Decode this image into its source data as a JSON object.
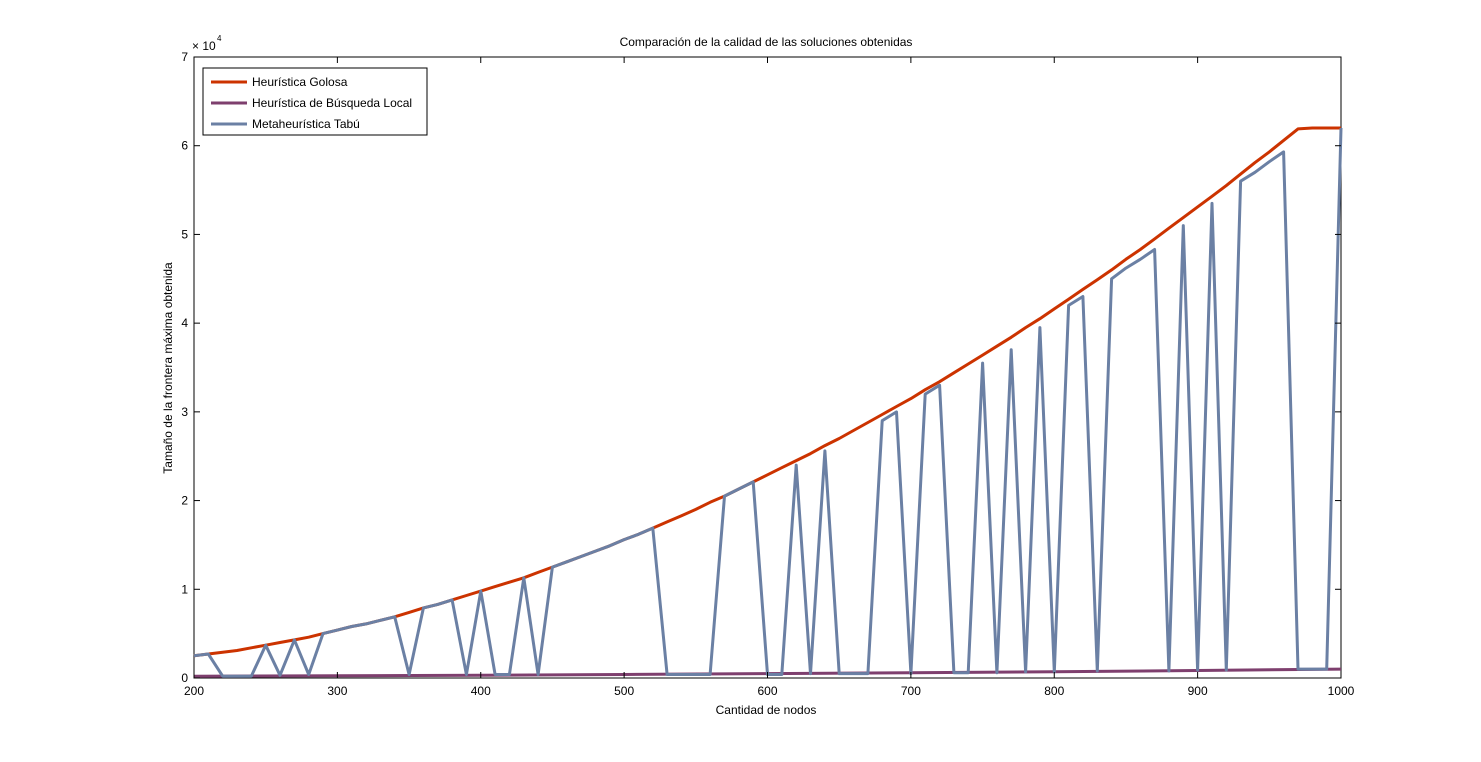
{
  "chart_data": {
    "type": "line",
    "title": "Comparación de la calidad de las soluciones obtenidas",
    "xlabel": "Cantidad de nodos",
    "ylabel": "Tamaño de la frontera máxima obtenida",
    "xlim": [
      200,
      1000
    ],
    "ylim": [
      0,
      70000
    ],
    "x_ticks": [
      "200",
      "300",
      "400",
      "500",
      "600",
      "700",
      "800",
      "900",
      "1000"
    ],
    "y_ticks": [
      "0",
      "1",
      "2",
      "3",
      "4",
      "5",
      "6",
      "7"
    ],
    "y_exponent": {
      "base": "× 10",
      "power": "4"
    },
    "grid": false,
    "legend_position": "top-left",
    "series": [
      {
        "name": "Heurística Golosa",
        "color": "#cc3300",
        "x": [
          200,
          210,
          220,
          230,
          240,
          250,
          260,
          270,
          280,
          290,
          300,
          310,
          320,
          330,
          340,
          350,
          360,
          370,
          380,
          390,
          400,
          410,
          420,
          430,
          440,
          450,
          460,
          470,
          480,
          490,
          500,
          510,
          520,
          530,
          540,
          550,
          560,
          570,
          580,
          590,
          600,
          610,
          620,
          630,
          640,
          650,
          660,
          670,
          680,
          690,
          700,
          710,
          720,
          730,
          740,
          750,
          760,
          770,
          780,
          790,
          800,
          810,
          820,
          830,
          840,
          850,
          860,
          870,
          880,
          890,
          900,
          910,
          920,
          930,
          940,
          950,
          960,
          970,
          980,
          990,
          1000
        ],
        "values": [
          2500,
          2700,
          2900,
          3100,
          3400,
          3700,
          4000,
          4300,
          4600,
          5000,
          5400,
          5800,
          6100,
          6500,
          6900,
          7400,
          7900,
          8300,
          8800,
          9300,
          9800,
          10300,
          10800,
          11300,
          11900,
          12500,
          13100,
          13700,
          14300,
          14900,
          15600,
          16200,
          16900,
          17600,
          18300,
          19000,
          19800,
          20500,
          21300,
          22100,
          22900,
          23700,
          24500,
          25300,
          26200,
          27000,
          27900,
          28800,
          29700,
          30600,
          31500,
          32500,
          33400,
          34400,
          35400,
          36400,
          37400,
          38400,
          39500,
          40500,
          41600,
          42700,
          43800,
          44900,
          46000,
          47200,
          48300,
          49500,
          50700,
          51900,
          53100,
          54300,
          55500,
          56800,
          58100,
          59300,
          60600,
          61900,
          62000,
          62000,
          62000
        ]
      },
      {
        "name": "Heurística de Búsqueda Local",
        "color": "#7e3f6e",
        "x": [
          200,
          300,
          400,
          500,
          600,
          700,
          800,
          900,
          1000
        ],
        "values": [
          200,
          250,
          300,
          400,
          500,
          600,
          700,
          850,
          1000
        ]
      },
      {
        "name": "Metaheurística Tabú",
        "color": "#6b80a4",
        "x": [
          200,
          210,
          220,
          230,
          240,
          250,
          260,
          270,
          280,
          290,
          300,
          310,
          320,
          330,
          340,
          350,
          360,
          370,
          380,
          390,
          400,
          410,
          420,
          430,
          440,
          450,
          460,
          470,
          480,
          490,
          500,
          510,
          520,
          530,
          540,
          550,
          560,
          570,
          580,
          590,
          600,
          610,
          620,
          630,
          640,
          650,
          660,
          670,
          680,
          690,
          700,
          710,
          720,
          730,
          740,
          750,
          760,
          770,
          780,
          790,
          800,
          810,
          820,
          830,
          840,
          850,
          860,
          870,
          880,
          890,
          900,
          910,
          920,
          930,
          940,
          950,
          960,
          970,
          980,
          990,
          1000
        ],
        "values": [
          2500,
          2700,
          200,
          200,
          200,
          3700,
          300,
          4300,
          400,
          5000,
          5400,
          5800,
          6100,
          6500,
          6900,
          400,
          7900,
          8300,
          8800,
          400,
          9800,
          400,
          400,
          11300,
          400,
          12500,
          13100,
          13700,
          14300,
          14900,
          15600,
          16200,
          16900,
          400,
          400,
          400,
          400,
          20500,
          21300,
          22100,
          400,
          400,
          24000,
          500,
          25600,
          500,
          500,
          500,
          29000,
          30000,
          500,
          32000,
          33000,
          600,
          600,
          35500,
          600,
          37000,
          700,
          39500,
          700,
          42000,
          43000,
          800,
          45000,
          46200,
          47200,
          48300,
          800,
          51000,
          900,
          53500,
          900,
          56000,
          57000,
          58200,
          59300,
          1000,
          1000,
          1000,
          62000
        ]
      }
    ]
  }
}
